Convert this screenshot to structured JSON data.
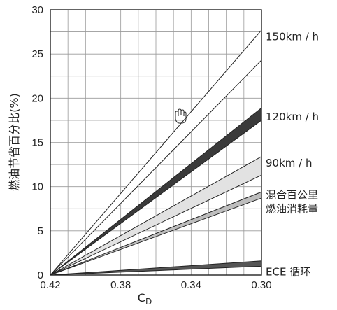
{
  "chart_data": {
    "type": "area",
    "xlabel": "C",
    "xlabel_sub": "D",
    "ylabel": "燃油节省百分比(%)",
    "x_ticks": [
      0.42,
      0.38,
      0.34,
      0.3
    ],
    "x_tick_labels": [
      "0.42",
      "0.38",
      "0.34",
      "0.30"
    ],
    "xlim": [
      0.42,
      0.3
    ],
    "y_ticks": [
      0,
      5,
      10,
      15,
      20,
      25,
      30
    ],
    "y_tick_labels": [
      "0",
      "5",
      "10",
      "15",
      "20",
      "25",
      "30"
    ],
    "ylim": [
      0,
      30
    ],
    "grid": true,
    "band_origin": {
      "x": 0.42,
      "y": 0
    },
    "series": [
      {
        "name": "150km / h",
        "x_end": 0.3,
        "y_low": 24.3,
        "y_high": 27.7,
        "fill": "#ffffff",
        "label_lines": [
          "150km / h"
        ]
      },
      {
        "name": "120km / h",
        "x_end": 0.3,
        "y_low": 17.5,
        "y_high": 18.9,
        "fill": "#3a3a3a",
        "label_lines": [
          "120km / h"
        ]
      },
      {
        "name": "90km / h",
        "x_end": 0.3,
        "y_low": 11.3,
        "y_high": 13.4,
        "fill": "#e2e2e2",
        "label_lines": [
          "90km / h"
        ]
      },
      {
        "name": "混合百公里燃油消耗量",
        "x_end": 0.3,
        "y_low": 8.7,
        "y_high": 9.4,
        "fill": "#bdbdbd",
        "label_lines": [
          "混合百公里",
          "燃油消耗量"
        ]
      },
      {
        "name": "ECE循环",
        "x_end": 0.3,
        "y_low": 1.0,
        "y_high": 1.6,
        "fill": "#555555",
        "label_lines": [
          "ECE 循环"
        ]
      }
    ]
  }
}
